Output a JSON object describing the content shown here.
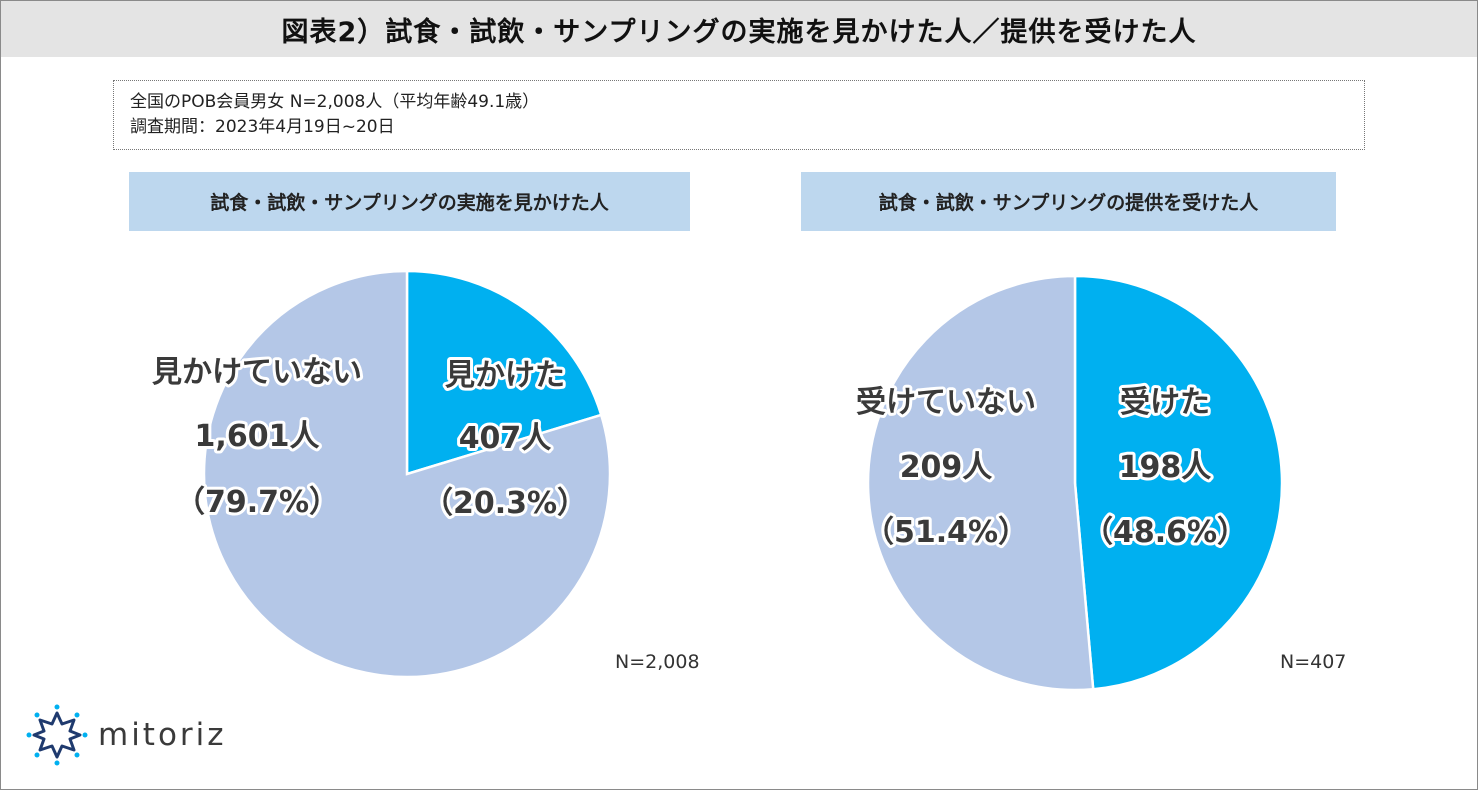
{
  "title": "図表2）試食・試飲・サンプリングの実施を見かけた人／提供を受けた人",
  "info": {
    "line1": "全国のPOB会員男女 N=2,008人（平均年齢49.1歳）",
    "line2": "調査期間：2023年4月19日~20日"
  },
  "logo": {
    "text": "mitoriz",
    "icon": "sun-burst-icon"
  },
  "colors": {
    "highlight": "#00b0f0",
    "other": "#b4c7e7",
    "header_bg": "#bdd7ee",
    "title_bg": "#e4e4e4"
  },
  "chart_data": [
    {
      "type": "pie",
      "title": "試食・試飲・サンプリングの実施を見かけた人",
      "note": "N=2,008",
      "slices": [
        {
          "name": "見かけた",
          "count_label": "407人",
          "pct_label": "（20.3%）",
          "value": 20.3,
          "color": "#00b0f0"
        },
        {
          "name": "見かけていない",
          "count_label": "1,601人",
          "pct_label": "（79.7%）",
          "value": 79.7,
          "color": "#b4c7e7"
        }
      ]
    },
    {
      "type": "pie",
      "title": "試食・試飲・サンプリングの提供を受けた人",
      "note": "N=407",
      "slices": [
        {
          "name": "受けた",
          "count_label": "198人",
          "pct_label": "（48.6%）",
          "value": 48.6,
          "color": "#00b0f0"
        },
        {
          "name": "受けていない",
          "count_label": "209人",
          "pct_label": "（51.4%）",
          "value": 51.4,
          "color": "#b4c7e7"
        }
      ]
    }
  ]
}
